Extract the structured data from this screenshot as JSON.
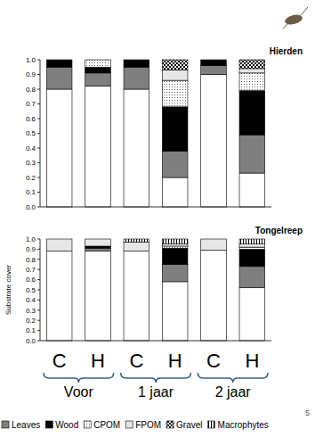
{
  "chart_data": [
    {
      "type": "bar",
      "stacked": true,
      "title": "Hierden",
      "tick_labels": "y",
      "categories": [
        "C",
        "H",
        "C",
        "H",
        "C",
        "H"
      ],
      "ylim": [
        0,
        1
      ],
      "yticks": [
        {
          "value": 0,
          "label": "0.0"
        },
        0.1,
        0.2,
        0.3,
        0.4,
        0.5,
        0.6,
        0.7,
        0.8,
        0.9,
        {
          "value": 1,
          "label": "1.0"
        }
      ],
      "series": [
        {
          "name": null,
          "color": "#ffffff",
          "values": [
            0.8,
            0.82,
            0.8,
            0.2,
            0.9,
            0.23
          ]
        },
        {
          "name": "Leaves",
          "color": "#7f7f7f",
          "values": [
            0.15,
            0.09,
            0.15,
            0.18,
            0.06,
            0.26
          ]
        },
        {
          "name": "Wood",
          "color": "#000000",
          "values": [
            0.05,
            0.04,
            0.05,
            0.3,
            0.04,
            0.3
          ]
        },
        {
          "name": "CPOM",
          "color": "#ffffff",
          "values": [
            0,
            0.05,
            0,
            0.18,
            0,
            0.12
          ]
        },
        {
          "name": "FPOM",
          "color": "#e6e6e6",
          "values": [
            0,
            0,
            0,
            0.07,
            0,
            0.03
          ]
        },
        {
          "name": "Gravel",
          "color": "#404040",
          "values": [
            0,
            0,
            0,
            0.07,
            0,
            0.06
          ]
        },
        {
          "name": "Macrophytes",
          "color": "#ffffff",
          "values": [
            0,
            0,
            0,
            0,
            0,
            0
          ]
        }
      ]
    },
    {
      "type": "bar",
      "stacked": true,
      "title": "Tongelreep",
      "y_label": "Substrate cover",
      "legend": "bottom",
      "categories": [
        "C",
        "H",
        "C",
        "H",
        "C",
        "H"
      ],
      "groups": [
        "Voor",
        "1 jaar",
        "2 jaar"
      ],
      "ylim": [
        0,
        1
      ],
      "yticks": [
        {
          "value": 0,
          "label": "0.0"
        },
        0.1,
        0.2,
        0.3,
        0.4,
        0.5,
        0.6,
        0.7,
        0.8,
        0.9,
        {
          "value": 1,
          "label": "1.0"
        }
      ],
      "series": [
        {
          "name": null,
          "color": "#ffffff",
          "values": [
            0.88,
            0.88,
            0.88,
            0.58,
            0.89,
            0.52
          ]
        },
        {
          "name": "Leaves",
          "color": "#7f7f7f",
          "values": [
            0,
            0.03,
            0,
            0.17,
            0,
            0.21
          ]
        },
        {
          "name": "Wood",
          "color": "#000000",
          "values": [
            0,
            0.02,
            0,
            0.16,
            0,
            0.17
          ]
        },
        {
          "name": "CPOM",
          "color": "#ffffff",
          "values": [
            0,
            0,
            0,
            0.02,
            0,
            0.02
          ]
        },
        {
          "name": "FPOM",
          "color": "#e6e6e6",
          "values": [
            0.12,
            0.07,
            0.09,
            0.02,
            0.11,
            0.03
          ]
        },
        {
          "name": "Gravel",
          "color": "#404040",
          "values": [
            0,
            0,
            0,
            0,
            0,
            0
          ]
        },
        {
          "name": "Macrophytes",
          "color": "#ffffff",
          "values": [
            0,
            0,
            0.03,
            0.05,
            0,
            0.05
          ]
        }
      ]
    }
  ],
  "page_number": 5
}
